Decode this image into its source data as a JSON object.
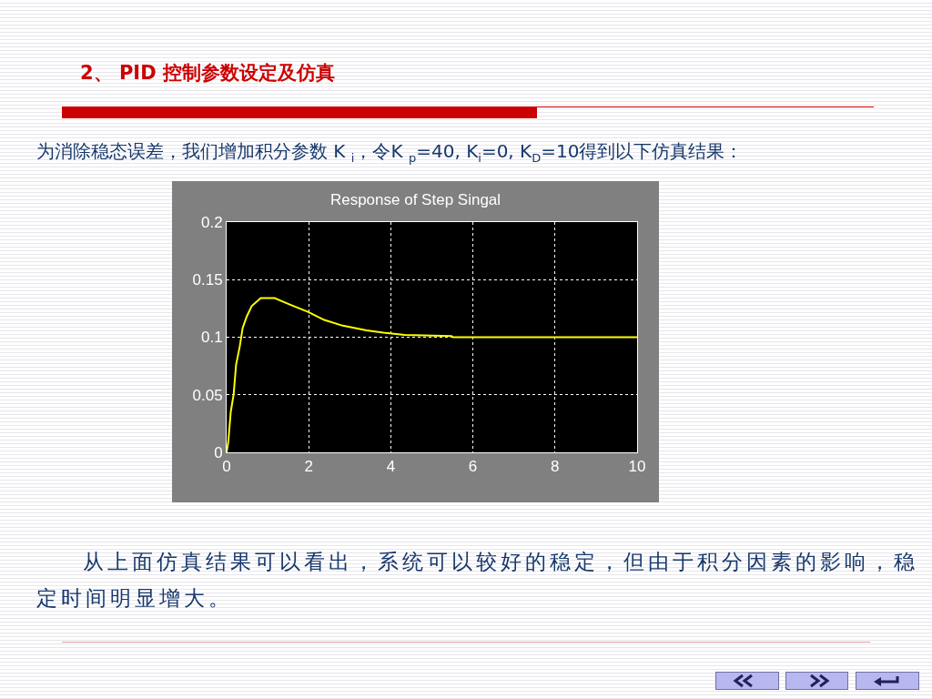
{
  "chart_data": {
    "type": "line",
    "title": "Response of Step Singal",
    "annotations": [
      "2、 PID 控制参数设定及仿真",
      "为消除稳态误差，我们增加积分参数 K $_{i}$，令K $_{p}$=40, K$_{i}$=0, K$_{D}$=10得到以下仿真结果：",
      "从上面仿真结果可以看出，系统可以较好的稳定，但由于积分因素的影响，稳定时间明显增大。"
    ],
    "series": [
      {
        "color": "#ffff00",
        "x": [
          0,
          0.04,
          0.1,
          0.17,
          0.23,
          0.32,
          0.39,
          0.49,
          0.61,
          0.83,
          1.17,
          1.5,
          1.98,
          2.38,
          2.83,
          3.41,
          3.82,
          4.34,
          5.48,
          5.52,
          10
        ],
        "values": [
          0,
          0.009,
          0.035,
          0.05,
          0.076,
          0.092,
          0.108,
          0.118,
          0.127,
          0.134,
          0.134,
          0.129,
          0.122,
          0.115,
          0.11,
          0.106,
          0.104,
          0.102,
          0.101,
          0.1,
          0.1
        ]
      }
    ],
    "xlim": [
      0,
      10
    ],
    "xticks": [
      0,
      2,
      4,
      6,
      8,
      10
    ],
    "ylim": [
      0,
      0.2
    ],
    "yticks": [
      0,
      0.05,
      0.1,
      0.15,
      0.2
    ],
    "grid": true,
    "line_style": "solid",
    "marker": "none"
  }
}
